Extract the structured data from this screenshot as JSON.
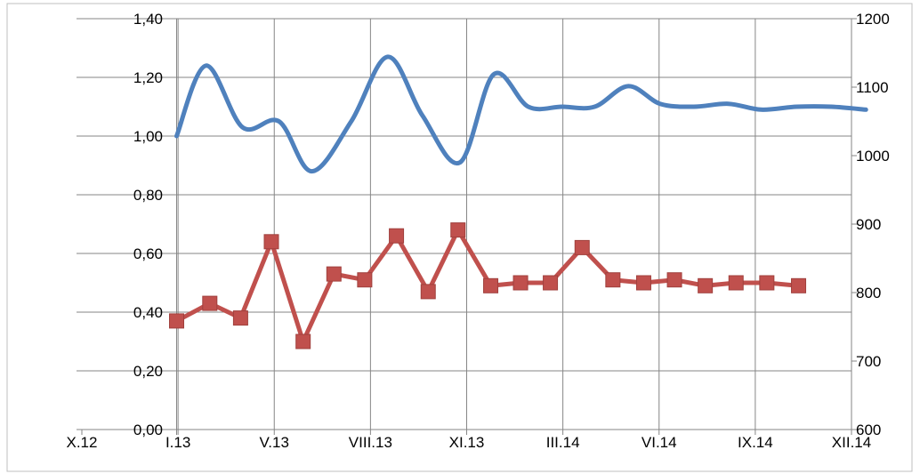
{
  "chart_data": {
    "type": "line",
    "title": "",
    "xlabel": "",
    "ylabel": "",
    "y2label": "",
    "x_tick_labels": [
      "X.12",
      "I.13",
      "V.13",
      "VIII.13",
      "XI.13",
      "III.14",
      "VI.14",
      "IX.14",
      "XII.14"
    ],
    "y_left": {
      "range": [
        0,
        1.4
      ],
      "ticks": [
        "0,00",
        "0,20",
        "0,40",
        "0,60",
        "0,80",
        "1,00",
        "1,20",
        "1,40"
      ]
    },
    "y_right": {
      "range": [
        600,
        1200
      ],
      "ticks": [
        "600",
        "700",
        "800",
        "900",
        "1000",
        "1100",
        "1200"
      ]
    },
    "grid": true,
    "legend": "none",
    "series": [
      {
        "axis": "left",
        "color": "#4f81bd",
        "smooth": true,
        "marker": "none",
        "points": [
          [
            0.985,
            1.0
          ],
          [
            1.29,
            1.24
          ],
          [
            1.67,
            1.03
          ],
          [
            2.05,
            1.05
          ],
          [
            2.39,
            0.88
          ],
          [
            2.8,
            1.05
          ],
          [
            3.18,
            1.27
          ],
          [
            3.54,
            1.07
          ],
          [
            3.93,
            0.91
          ],
          [
            4.28,
            1.21
          ],
          [
            4.64,
            1.1
          ],
          [
            4.99,
            1.1
          ],
          [
            5.33,
            1.1
          ],
          [
            5.68,
            1.17
          ],
          [
            6.01,
            1.11
          ],
          [
            6.36,
            1.1
          ],
          [
            6.72,
            1.11
          ],
          [
            7.06,
            1.09
          ],
          [
            7.43,
            1.1
          ],
          [
            7.79,
            1.1
          ],
          [
            8.15,
            1.09
          ]
        ]
      },
      {
        "axis": "left",
        "color": "#c0504d",
        "smooth": false,
        "marker": "square",
        "points": [
          [
            0.985,
            0.37
          ],
          [
            1.33,
            0.43
          ],
          [
            1.65,
            0.38
          ],
          [
            1.97,
            0.64
          ],
          [
            2.3,
            0.3
          ],
          [
            2.62,
            0.53
          ],
          [
            2.94,
            0.51
          ],
          [
            3.27,
            0.66
          ],
          [
            3.6,
            0.47
          ],
          [
            3.91,
            0.68
          ],
          [
            4.25,
            0.49
          ],
          [
            4.56,
            0.5
          ],
          [
            4.87,
            0.5
          ],
          [
            5.2,
            0.62
          ],
          [
            5.52,
            0.51
          ],
          [
            5.84,
            0.5
          ],
          [
            6.16,
            0.51
          ],
          [
            6.48,
            0.49
          ],
          [
            6.8,
            0.5
          ],
          [
            7.12,
            0.5
          ],
          [
            7.45,
            0.49
          ]
        ]
      }
    ]
  }
}
